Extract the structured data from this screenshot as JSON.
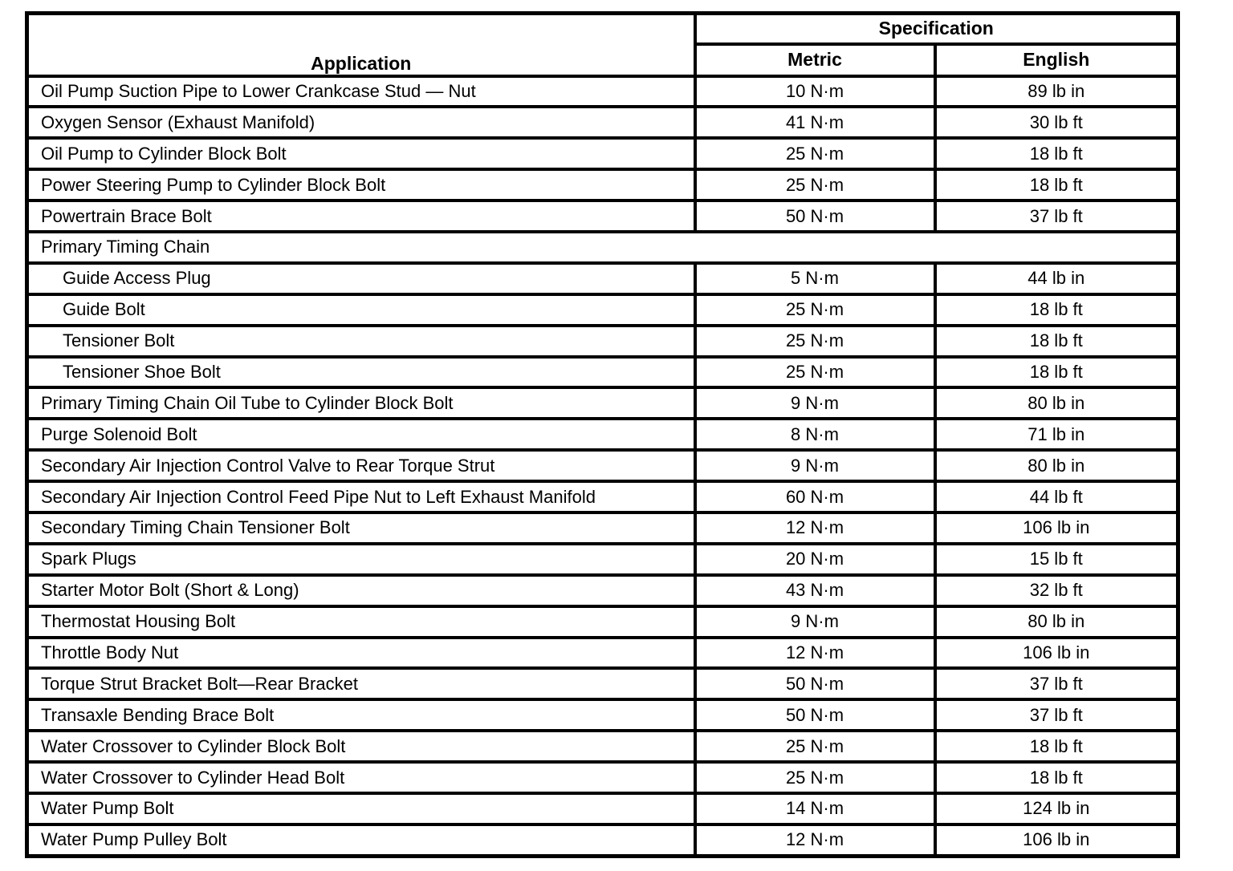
{
  "table": {
    "header": {
      "application": "Application",
      "specification": "Specification",
      "metric": "Metric",
      "english": "English"
    },
    "rows": [
      {
        "application": "Oil Pump Suction Pipe to Lower Crankcase Stud — Nut",
        "metric": "10 N·m",
        "english": "89 lb in",
        "indent": false,
        "span": false
      },
      {
        "application": "Oxygen Sensor (Exhaust Manifold)",
        "metric": "41 N·m",
        "english": "30 lb ft",
        "indent": false,
        "span": false
      },
      {
        "application": "Oil Pump to Cylinder Block Bolt",
        "metric": "25 N·m",
        "english": "18 lb ft",
        "indent": false,
        "span": false
      },
      {
        "application": "Power Steering Pump to Cylinder Block Bolt",
        "metric": "25 N·m",
        "english": "18 lb ft",
        "indent": false,
        "span": false
      },
      {
        "application": "Powertrain Brace Bolt",
        "metric": "50 N·m",
        "english": "37 lb ft",
        "indent": false,
        "span": false
      },
      {
        "application": "Primary Timing Chain",
        "metric": "",
        "english": "",
        "indent": false,
        "span": true
      },
      {
        "application": "Guide Access Plug",
        "metric": "5 N·m",
        "english": "44 lb in",
        "indent": true,
        "span": false
      },
      {
        "application": "Guide Bolt",
        "metric": "25 N·m",
        "english": "18 lb ft",
        "indent": true,
        "span": false
      },
      {
        "application": "Tensioner Bolt",
        "metric": "25 N·m",
        "english": "18 lb ft",
        "indent": true,
        "span": false
      },
      {
        "application": "Tensioner Shoe Bolt",
        "metric": "25 N·m",
        "english": "18 lb ft",
        "indent": true,
        "span": false
      },
      {
        "application": "Primary Timing Chain Oil Tube to Cylinder Block Bolt",
        "metric": "9 N·m",
        "english": "80 lb in",
        "indent": false,
        "span": false
      },
      {
        "application": "Purge Solenoid Bolt",
        "metric": "8 N·m",
        "english": "71 lb in",
        "indent": false,
        "span": false
      },
      {
        "application": "Secondary Air Injection Control Valve to Rear Torque Strut",
        "metric": "9 N·m",
        "english": "80 lb in",
        "indent": false,
        "span": false
      },
      {
        "application": "Secondary Air Injection Control Feed Pipe Nut to Left Exhaust Manifold",
        "metric": "60 N·m",
        "english": "44 lb ft",
        "indent": false,
        "span": false
      },
      {
        "application": "Secondary Timing Chain Tensioner Bolt",
        "metric": "12 N·m",
        "english": "106 lb in",
        "indent": false,
        "span": false
      },
      {
        "application": "Spark Plugs",
        "metric": "20 N·m",
        "english": "15 lb ft",
        "indent": false,
        "span": false
      },
      {
        "application": "Starter Motor Bolt (Short & Long)",
        "metric": "43 N·m",
        "english": "32 lb ft",
        "indent": false,
        "span": false
      },
      {
        "application": "Thermostat Housing Bolt",
        "metric": "9 N·m",
        "english": "80 lb in",
        "indent": false,
        "span": false
      },
      {
        "application": "Throttle Body Nut",
        "metric": "12 N·m",
        "english": "106 lb in",
        "indent": false,
        "span": false
      },
      {
        "application": "Torque Strut Bracket Bolt—Rear Bracket",
        "metric": "50 N·m",
        "english": "37 lb ft",
        "indent": false,
        "span": false
      },
      {
        "application": "Transaxle Bending Brace Bolt",
        "metric": "50 N·m",
        "english": "37 lb ft",
        "indent": false,
        "span": false
      },
      {
        "application": "Water Crossover to Cylinder Block Bolt",
        "metric": "25 N·m",
        "english": "18 lb ft",
        "indent": false,
        "span": false
      },
      {
        "application": "Water Crossover to Cylinder Head Bolt",
        "metric": "25 N·m",
        "english": "18 lb ft",
        "indent": false,
        "span": false
      },
      {
        "application": "Water Pump Bolt",
        "metric": "14 N·m",
        "english": "124 lb in",
        "indent": false,
        "span": false
      },
      {
        "application": "Water Pump Pulley Bolt",
        "metric": "12 N·m",
        "english": "106 lb in",
        "indent": false,
        "span": false
      }
    ]
  }
}
